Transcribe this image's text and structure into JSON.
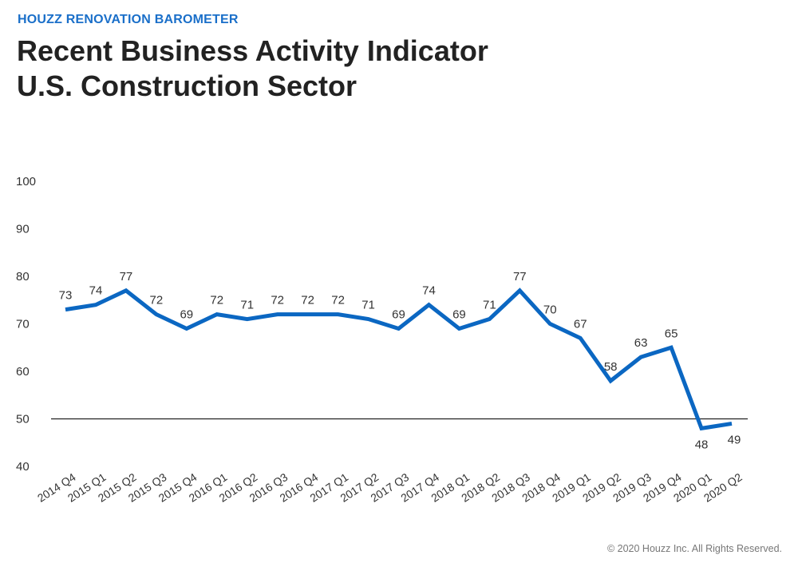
{
  "header": {
    "kicker": "HOUZZ RENOVATION BAROMETER",
    "title_line1": "Recent Business Activity Indicator",
    "title_line2": "U.S. Construction Sector"
  },
  "footer": {
    "copyright": "© 2020 Houzz Inc. All Rights Reserved."
  },
  "chart_data": {
    "type": "line",
    "title": "Recent Business Activity Indicator U.S. Construction Sector",
    "categories": [
      "2014 Q4",
      "2015 Q1",
      "2015 Q2",
      "2015 Q3",
      "2015 Q4",
      "2016 Q1",
      "2016 Q2",
      "2016 Q3",
      "2016 Q4",
      "2017 Q1",
      "2017 Q2",
      "2017 Q3",
      "2017 Q4",
      "2018 Q1",
      "2018 Q2",
      "2018 Q3",
      "2018 Q4",
      "2019 Q1",
      "2019 Q2",
      "2019 Q3",
      "2019 Q4",
      "2020 Q1",
      "2020 Q2"
    ],
    "values": [
      73,
      74,
      77,
      72,
      69,
      72,
      71,
      72,
      72,
      72,
      71,
      69,
      74,
      69,
      71,
      77,
      70,
      67,
      58,
      63,
      65,
      48,
      49
    ],
    "ylim": [
      40,
      100
    ],
    "yticks": [
      40,
      50,
      60,
      70,
      80,
      90,
      100
    ],
    "reference_line": 50,
    "grid": false,
    "line_color": "#0b67c2",
    "data_labels": true
  }
}
